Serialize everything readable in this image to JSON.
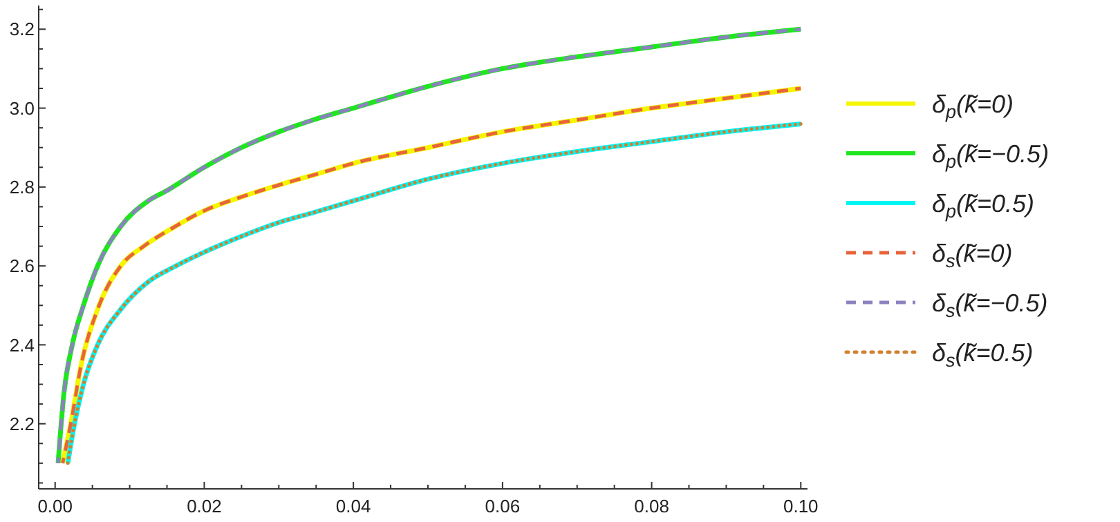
{
  "chart_data": {
    "type": "line",
    "legend": "right",
    "grid": false,
    "xlim": [
      -0.0022,
      0.1009
    ],
    "ylim": [
      2.035,
      3.26
    ],
    "xticks": [
      {
        "value": 0,
        "label": "0.00"
      },
      {
        "value": 0.005,
        "label": null
      },
      {
        "value": 0.01,
        "label": null
      },
      {
        "value": 0.015,
        "label": null
      },
      {
        "value": 0.02,
        "label": "0.02"
      },
      {
        "value": 0.025,
        "label": null
      },
      {
        "value": 0.03,
        "label": null
      },
      {
        "value": 0.035,
        "label": null
      },
      {
        "value": 0.04,
        "label": "0.04"
      },
      {
        "value": 0.045,
        "label": null
      },
      {
        "value": 0.05,
        "label": null
      },
      {
        "value": 0.055,
        "label": null
      },
      {
        "value": 0.06,
        "label": "0.06"
      },
      {
        "value": 0.065,
        "label": null
      },
      {
        "value": 0.07,
        "label": null
      },
      {
        "value": 0.075,
        "label": null
      },
      {
        "value": 0.08,
        "label": "0.08"
      },
      {
        "value": 0.085,
        "label": null
      },
      {
        "value": 0.09,
        "label": null
      },
      {
        "value": 0.095,
        "label": null
      },
      {
        "value": 0.1,
        "label": "0.10"
      }
    ],
    "yticks": [
      {
        "value": 2.05,
        "label": null
      },
      {
        "value": 2.1,
        "label": null
      },
      {
        "value": 2.15,
        "label": null
      },
      {
        "value": 2.2,
        "label": "2.2"
      },
      {
        "value": 2.25,
        "label": null
      },
      {
        "value": 2.3,
        "label": null
      },
      {
        "value": 2.35,
        "label": null
      },
      {
        "value": 2.4,
        "label": "2.4"
      },
      {
        "value": 2.45,
        "label": null
      },
      {
        "value": 2.5,
        "label": null
      },
      {
        "value": 2.55,
        "label": null
      },
      {
        "value": 2.6,
        "label": "2.6"
      },
      {
        "value": 2.65,
        "label": null
      },
      {
        "value": 2.7,
        "label": null
      },
      {
        "value": 2.75,
        "label": null
      },
      {
        "value": 2.8,
        "label": "2.8"
      },
      {
        "value": 2.85,
        "label": null
      },
      {
        "value": 2.9,
        "label": null
      },
      {
        "value": 2.95,
        "label": null
      },
      {
        "value": 3.0,
        "label": "3.0"
      },
      {
        "value": 3.05,
        "label": null
      },
      {
        "value": 3.1,
        "label": null
      },
      {
        "value": 3.15,
        "label": null
      },
      {
        "value": 3.2,
        "label": "3.2"
      },
      {
        "value": 3.25,
        "label": null
      }
    ],
    "series": [
      {
        "name": "δ$_{p}$(k̃=0)",
        "color": "#f5f500",
        "line_style": "solid",
        "x": [
          0.001,
          0.0021,
          0.0035,
          0.0057,
          0.0088,
          0.0119,
          0.0161,
          0.02,
          0.025,
          0.03,
          0.0346,
          0.04,
          0.05,
          0.06,
          0.07,
          0.08,
          0.09,
          0.1
        ],
        "values": [
          2.1,
          2.2,
          2.35,
          2.49,
          2.6,
          2.65,
          2.7,
          2.74,
          2.775,
          2.805,
          2.83,
          2.86,
          2.9,
          2.94,
          2.97,
          3.0,
          3.025,
          3.05
        ]
      },
      {
        "name": "δ$_{p}$(k̃=−0.5)",
        "color": "#1ee61e",
        "line_style": "solid",
        "x": [
          0.0004,
          0.0012,
          0.0023,
          0.0038,
          0.0057,
          0.0088,
          0.0125,
          0.0149,
          0.02,
          0.025,
          0.03,
          0.0346,
          0.04,
          0.05,
          0.06,
          0.07,
          0.08,
          0.09,
          0.1
        ],
        "values": [
          2.1,
          2.28,
          2.4,
          2.5,
          2.6,
          2.7,
          2.765,
          2.79,
          2.85,
          2.9,
          2.94,
          2.97,
          3.0,
          3.055,
          3.1,
          3.13,
          3.155,
          3.18,
          3.2
        ]
      },
      {
        "name": "δ$_{p}$(k̃=0.5)",
        "color": "#00f5f5",
        "line_style": "solid",
        "x": [
          0.0017,
          0.0026,
          0.0038,
          0.0057,
          0.0088,
          0.0125,
          0.0162,
          0.02,
          0.025,
          0.03,
          0.0346,
          0.04,
          0.05,
          0.06,
          0.07,
          0.08,
          0.09,
          0.1
        ],
        "values": [
          2.1,
          2.2,
          2.3,
          2.4,
          2.49,
          2.56,
          2.6,
          2.635,
          2.675,
          2.71,
          2.735,
          2.765,
          2.82,
          2.86,
          2.89,
          2.915,
          2.94,
          2.96
        ]
      },
      {
        "name": "δ$_{s}$(k̃=0)",
        "color": "#e8643c",
        "line_style": "dashed",
        "x": [
          0.001,
          0.0021,
          0.0035,
          0.0057,
          0.0088,
          0.0119,
          0.0161,
          0.02,
          0.025,
          0.03,
          0.0346,
          0.04,
          0.05,
          0.06,
          0.07,
          0.08,
          0.09,
          0.1
        ],
        "values": [
          2.1,
          2.2,
          2.35,
          2.49,
          2.6,
          2.65,
          2.7,
          2.74,
          2.775,
          2.805,
          2.83,
          2.86,
          2.9,
          2.94,
          2.97,
          3.0,
          3.025,
          3.05
        ]
      },
      {
        "name": "δ$_{s}$(k̃=−0.5)",
        "color": "#8c80c0",
        "line_style": "dashed",
        "x": [
          0.0004,
          0.0012,
          0.0023,
          0.0038,
          0.0057,
          0.0088,
          0.0125,
          0.0149,
          0.02,
          0.025,
          0.03,
          0.0346,
          0.04,
          0.05,
          0.06,
          0.07,
          0.08,
          0.09,
          0.1
        ],
        "values": [
          2.1,
          2.28,
          2.4,
          2.5,
          2.6,
          2.7,
          2.765,
          2.79,
          2.85,
          2.9,
          2.94,
          2.97,
          3.0,
          3.055,
          3.1,
          3.13,
          3.155,
          3.18,
          3.2
        ]
      },
      {
        "name": "δ$_{s}$(k̃=0.5)",
        "color": "#d08030",
        "line_style": "dotted",
        "x": [
          0.0017,
          0.0026,
          0.0038,
          0.0057,
          0.0088,
          0.0125,
          0.0162,
          0.02,
          0.025,
          0.03,
          0.0346,
          0.04,
          0.05,
          0.06,
          0.07,
          0.08,
          0.09,
          0.1
        ],
        "values": [
          2.1,
          2.2,
          2.3,
          2.4,
          2.49,
          2.56,
          2.6,
          2.635,
          2.675,
          2.71,
          2.735,
          2.765,
          2.82,
          2.86,
          2.89,
          2.915,
          2.94,
          2.96
        ]
      }
    ]
  }
}
